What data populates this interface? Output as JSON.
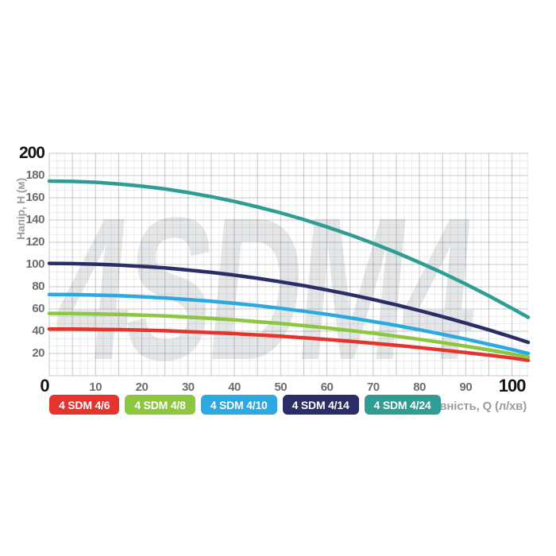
{
  "watermark": "4SDM4",
  "y_axis": {
    "label": "Напір, H (м)",
    "ticks": [
      200,
      180,
      160,
      140,
      120,
      100,
      80,
      60,
      40,
      20
    ],
    "bold_ticks": [
      200
    ]
  },
  "x_axis": {
    "label": "Продуктивність, Q (л/хв)",
    "ticks": [
      0,
      10,
      20,
      30,
      40,
      50,
      60,
      70,
      80,
      90,
      100
    ],
    "bold_ticks": [
      0,
      100
    ]
  },
  "legend": [
    {
      "label": "4 SDM 4/6",
      "color": "#e5332e"
    },
    {
      "label": "4 SDM 4/8",
      "color": "#8dc63f"
    },
    {
      "label": "4 SDM 4/10",
      "color": "#2ba9e0"
    },
    {
      "label": "4 SDM 4/14",
      "color": "#2b2e66"
    },
    {
      "label": "4 SDM 4/24",
      "color": "#2f9d92"
    }
  ],
  "colors": {
    "grid_line": "#5c6166",
    "watermark": "#e4e6e8",
    "tick_gray": "#6b6e71",
    "tick_black": "#141416",
    "axis_label_gray": "#9b9ea1"
  },
  "chart_data": {
    "type": "line",
    "title": "",
    "xlabel": "Продуктивність, Q (л/хв)",
    "ylabel": "Напір, H (м)",
    "xlim": [
      0,
      103.5
    ],
    "ylim": [
      0,
      200
    ],
    "grid": true,
    "legend_position": "bottom",
    "x": [
      0,
      5,
      10,
      15,
      20,
      25,
      30,
      35,
      40,
      45,
      50,
      55,
      60,
      65,
      70,
      75,
      80,
      85,
      90,
      95,
      100,
      103.5
    ],
    "series": [
      {
        "name": "4 SDM 4/6",
        "color": "#e5332e",
        "values": [
          42,
          41.9,
          41.7,
          41.4,
          41,
          40.4,
          39.6,
          38.8,
          37.8,
          36.7,
          35.5,
          34.1,
          32.6,
          31,
          29.2,
          27.3,
          25.3,
          23.1,
          20.8,
          18.4,
          15.9,
          13.8
        ]
      },
      {
        "name": "4 SDM 4/8",
        "color": "#8dc63f",
        "values": [
          56,
          55.9,
          55.6,
          55.2,
          54.5,
          53.7,
          52.7,
          51.5,
          50.2,
          48.6,
          46.9,
          45,
          42.9,
          40.6,
          38.2,
          35.5,
          32.7,
          29.7,
          26.5,
          23.2,
          19.6,
          16.8
        ]
      },
      {
        "name": "4 SDM 4/10",
        "color": "#2ba9e0",
        "values": [
          73,
          72.9,
          72.5,
          71.9,
          71,
          69.9,
          68.5,
          66.9,
          65.1,
          63,
          60.6,
          58,
          55.2,
          52.1,
          48.7,
          45.2,
          41.3,
          37.2,
          32.9,
          28.3,
          23.5,
          20
        ]
      },
      {
        "name": "4 SDM 4/14",
        "color": "#2b2e66",
        "values": [
          101,
          100.8,
          100.3,
          99.5,
          98.3,
          96.9,
          95,
          92.9,
          90.4,
          87.6,
          84.4,
          81,
          77.1,
          73,
          68.5,
          63.7,
          58.6,
          53.1,
          47.3,
          41.2,
          34.7,
          30
        ]
      },
      {
        "name": "4 SDM 4/24",
        "color": "#2f9d92",
        "values": [
          175,
          174.7,
          173.9,
          172.4,
          170.4,
          167.9,
          164.7,
          161,
          156.7,
          151.8,
          146.4,
          140.4,
          133.8,
          126.7,
          119,
          110.7,
          101.8,
          92.4,
          82.4,
          71.8,
          60.6,
          52.5
        ]
      }
    ]
  }
}
